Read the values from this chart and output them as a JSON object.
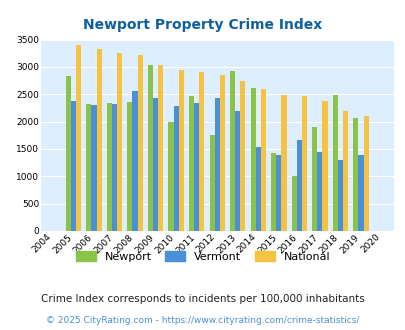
{
  "title": "Newport Property Crime Index",
  "years": [
    2004,
    2005,
    2006,
    2007,
    2008,
    2009,
    2010,
    2011,
    2012,
    2013,
    2014,
    2015,
    2016,
    2017,
    2018,
    2019,
    2020
  ],
  "newport": [
    null,
    2830,
    2330,
    2340,
    2360,
    3040,
    2000,
    2460,
    1760,
    2930,
    2620,
    1420,
    1000,
    1900,
    2480,
    2060,
    null
  ],
  "vermont": [
    null,
    2370,
    2300,
    2330,
    2560,
    2430,
    2290,
    2340,
    2430,
    2200,
    1530,
    1390,
    1670,
    1440,
    1290,
    1390,
    null
  ],
  "national": [
    null,
    3410,
    3320,
    3260,
    3210,
    3040,
    2950,
    2910,
    2860,
    2740,
    2600,
    2490,
    2460,
    2380,
    2200,
    2110,
    null
  ],
  "newport_color": "#8bc34a",
  "vermont_color": "#4a90d9",
  "national_color": "#f5c242",
  "bg_color": "#ddeeff",
  "ylim": [
    0,
    3500
  ],
  "yticks": [
    0,
    500,
    1000,
    1500,
    2000,
    2500,
    3000,
    3500
  ],
  "bar_width": 0.25,
  "subtitle": "Crime Index corresponds to incidents per 100,000 inhabitants",
  "footer": "© 2025 CityRating.com - https://www.cityrating.com/crime-statistics/",
  "title_color": "#1060a0",
  "subtitle_color": "#222222",
  "footer_color": "#4a90d9"
}
